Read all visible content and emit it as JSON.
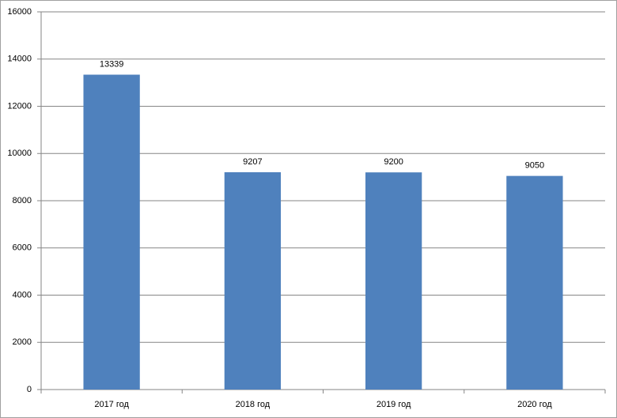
{
  "chart_data": {
    "type": "bar",
    "categories": [
      "2017 год",
      "2018 год",
      "2019 год",
      "2020 год"
    ],
    "values": [
      13339,
      9207,
      9200,
      9050
    ],
    "color": "#4f81bd",
    "ylim": [
      0,
      16000
    ],
    "yticks": [
      0,
      2000,
      4000,
      6000,
      8000,
      10000,
      12000,
      14000,
      16000
    ],
    "grid": true
  }
}
